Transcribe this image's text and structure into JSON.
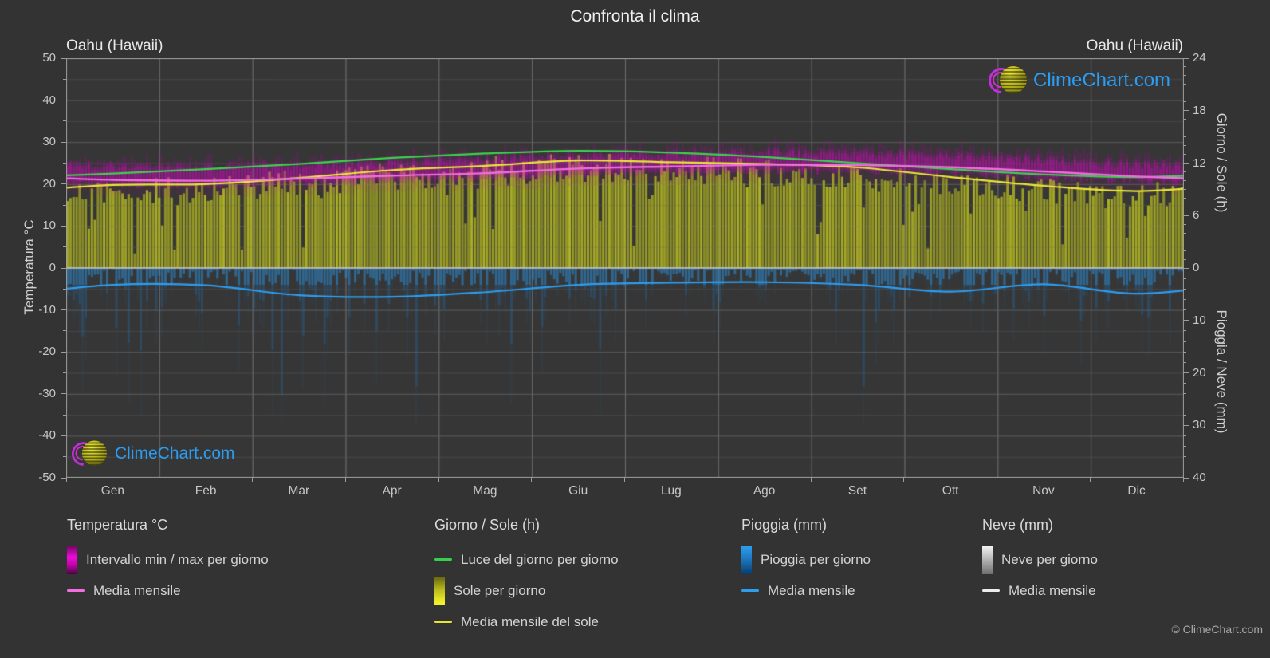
{
  "header": {
    "title": "Confronta il clima",
    "location_left": "Oahu (Hawaii)",
    "location_right": "Oahu (Hawaii)"
  },
  "watermark": {
    "text": "ClimeChart.com"
  },
  "footer": {
    "copyright": "© ClimeChart.com"
  },
  "axes": {
    "temp": {
      "label": "Temperatura °C",
      "min": -50,
      "max": 50,
      "ticks": [
        "50",
        "40",
        "30",
        "20",
        "10",
        "0",
        "-10",
        "-20",
        "-30",
        "-40",
        "-50"
      ]
    },
    "day_sun": {
      "label": "Giorno / Sole (h)",
      "min": 0,
      "max": 24,
      "ticks": [
        "24",
        "18",
        "12",
        "6",
        "0"
      ]
    },
    "rain_snow": {
      "label": "Pioggia / Neve (mm)",
      "min": 0,
      "max": 40,
      "ticks": [
        "0",
        "10",
        "20",
        "30",
        "40"
      ]
    },
    "x": {
      "months": [
        "Gen",
        "Feb",
        "Mar",
        "Apr",
        "Mag",
        "Giu",
        "Lug",
        "Ago",
        "Set",
        "Ott",
        "Nov",
        "Dic"
      ]
    }
  },
  "legend": {
    "groups": [
      {
        "header": "Temperatura °C",
        "items": [
          {
            "label": "Intervallo min / max per giorno"
          },
          {
            "label": "Media mensile"
          }
        ]
      },
      {
        "header": "Giorno / Sole (h)",
        "items": [
          {
            "label": "Luce del giorno per giorno"
          },
          {
            "label": "Sole per giorno"
          },
          {
            "label": "Media mensile del sole"
          }
        ]
      },
      {
        "header": "Pioggia (mm)",
        "items": [
          {
            "label": "Pioggia per giorno"
          },
          {
            "label": "Media mensile"
          }
        ]
      },
      {
        "header": "Neve (mm)",
        "items": [
          {
            "label": "Neve per giorno"
          },
          {
            "label": "Media mensile"
          }
        ]
      }
    ]
  },
  "colors": {
    "background": "#333333",
    "plot_background": "#363636",
    "grid_major": "#5c5c5c",
    "grid_minor": "#474747",
    "grid_month": "#6f6f6f",
    "plot_border": "#9e9e9e",
    "zero_line": "#cccccc",
    "axis_text": "#c6c6c6",
    "title_text": "#f0f0f0",
    "temp_band": "#e100d0",
    "temp_mean_line": "#f06ee0",
    "daylight_line": "#3bd34d",
    "sun_fill": "#b5b92a",
    "sun_mean_line": "#e8e836",
    "rain_fill": "#2186d4",
    "rain_mean_line": "#2e9df0",
    "snow_fill": "#e0e0e0",
    "snow_mean_line": "#eaeaea",
    "brand_blue": "#2a9df4",
    "logo_magenta": "#c32cdf",
    "logo_yellow": "#e6de14"
  },
  "chart_data": {
    "type": "area",
    "title": "Confronta il clima",
    "location": "Oahu (Hawaii)",
    "categories": [
      "Gen",
      "Feb",
      "Mar",
      "Apr",
      "Mag",
      "Giu",
      "Lug",
      "Ago",
      "Set",
      "Ott",
      "Nov",
      "Dic"
    ],
    "y_axes": {
      "temperature_c": {
        "label": "Temperatura °C",
        "range": [
          -50,
          50
        ],
        "side": "left"
      },
      "day_sun_h": {
        "label": "Giorno / Sole (h)",
        "range": [
          0,
          24
        ],
        "side": "right",
        "mapped_to": "upper half"
      },
      "rain_snow_mm": {
        "label": "Pioggia / Neve (mm)",
        "range": [
          0,
          40
        ],
        "side": "right",
        "mapped_to": "lower half, increasing downward"
      }
    },
    "grid": true,
    "legend_position": "bottom",
    "series": [
      {
        "id": "temp_range_daily",
        "name": "Intervallo min / max per giorno",
        "unit": "°C",
        "render": "daily_band",
        "monthly_min": [
          19.6,
          19.4,
          19.9,
          20.6,
          21.3,
          22.1,
          22.6,
          23.0,
          22.9,
          22.4,
          21.4,
          20.4
        ],
        "monthly_max": [
          24.6,
          24.4,
          24.9,
          25.6,
          26.4,
          27.1,
          27.6,
          28.0,
          27.9,
          27.3,
          26.2,
          25.2
        ]
      },
      {
        "id": "temp_mean",
        "name": "Media mensile",
        "unit": "°C",
        "render": "line",
        "values": [
          21.0,
          20.8,
          21.3,
          22.0,
          22.6,
          23.7,
          24.2,
          24.6,
          24.5,
          24.0,
          23.0,
          21.8
        ]
      },
      {
        "id": "daylight",
        "name": "Luce del giorno per giorno",
        "unit": "h",
        "render": "line",
        "values": [
          10.8,
          11.3,
          11.9,
          12.6,
          13.1,
          13.4,
          13.2,
          12.7,
          12.0,
          11.3,
          10.7,
          10.4
        ]
      },
      {
        "id": "sun_daily",
        "name": "Sole per giorno",
        "unit": "h",
        "render": "daily_area_from_zero",
        "monthly_mean": [
          9.5,
          9.6,
          10.3,
          11.2,
          11.7,
          12.3,
          12.1,
          11.9,
          11.5,
          10.4,
          9.4,
          8.8
        ]
      },
      {
        "id": "sun_mean",
        "name": "Media mensile del sole",
        "unit": "h",
        "render": "line",
        "values": [
          9.5,
          9.6,
          10.3,
          11.2,
          11.7,
          12.3,
          12.1,
          11.9,
          11.5,
          10.4,
          9.4,
          8.8
        ]
      },
      {
        "id": "rain_daily",
        "name": "Pioggia per giorno",
        "unit": "mm",
        "render": "daily_bars_downward",
        "monthly_mean": [
          3.2,
          3.3,
          5.2,
          5.5,
          4.6,
          3.2,
          2.8,
          2.7,
          3.2,
          4.5,
          3.1,
          4.9
        ]
      },
      {
        "id": "rain_mean",
        "name": "Media mensile",
        "unit": "mm",
        "render": "line",
        "values": [
          3.2,
          3.3,
          5.2,
          5.5,
          4.6,
          3.2,
          2.8,
          2.7,
          3.2,
          4.5,
          3.1,
          4.9
        ]
      },
      {
        "id": "snow_daily",
        "name": "Neve per giorno",
        "unit": "mm",
        "render": "daily_bars_downward",
        "monthly_mean": [
          0,
          0,
          0,
          0,
          0,
          0,
          0,
          0,
          0,
          0,
          0,
          0
        ]
      },
      {
        "id": "snow_mean",
        "name": "Media mensile",
        "unit": "mm",
        "render": "line",
        "values": [
          0,
          0,
          0,
          0,
          0,
          0,
          0,
          0,
          0,
          0,
          0,
          0
        ]
      }
    ]
  }
}
